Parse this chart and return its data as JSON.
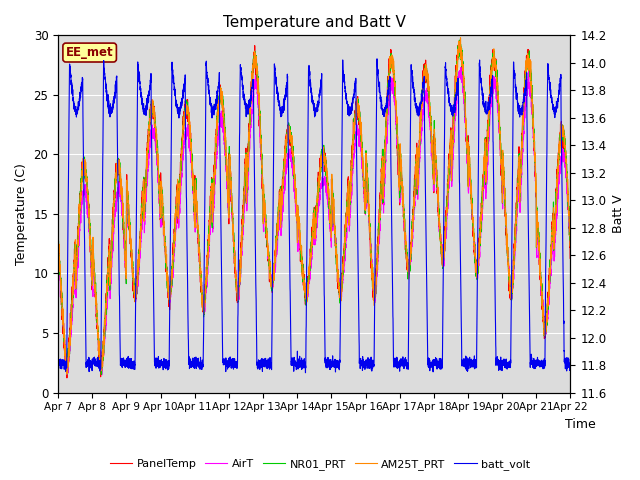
{
  "title": "Temperature and Batt V",
  "xlabel": "Time",
  "ylabel_left": "Temperature (C)",
  "ylabel_right": "Batt V",
  "annotation_text": "EE_met",
  "annotation_color": "#8B0000",
  "annotation_bg": "#FFFF99",
  "annotation_border": "#8B0000",
  "xlim": [
    0,
    15
  ],
  "ylim_left": [
    0,
    30
  ],
  "ylim_right": [
    11.6,
    14.2
  ],
  "xtick_labels": [
    "Apr 7",
    "Apr 8",
    "Apr 9",
    "Apr 10",
    "Apr 11",
    "Apr 12",
    "Apr 13",
    "Apr 14",
    "Apr 15",
    "Apr 16",
    "Apr 17",
    "Apr 18",
    "Apr 19",
    "Apr 20",
    "Apr 21",
    "Apr 22"
  ],
  "yticks_left": [
    0,
    5,
    10,
    15,
    20,
    25,
    30
  ],
  "yticks_right": [
    11.6,
    11.8,
    12.0,
    12.2,
    12.4,
    12.6,
    12.8,
    13.0,
    13.2,
    13.4,
    13.6,
    13.8,
    14.0,
    14.2
  ],
  "bg_color": "#DCDCDC",
  "colors": {
    "PanelTemp": "#FF0000",
    "AirT": "#FF00FF",
    "NR01_PRT": "#00CC00",
    "AM25T_PRT": "#FF8800",
    "batt_volt": "#0000EE"
  },
  "legend_labels": [
    "PanelTemp",
    "AirT",
    "NR01_PRT",
    "AM25T_PRT",
    "batt_volt"
  ],
  "linewidth": 0.8,
  "figsize": [
    6.4,
    4.8
  ],
  "dpi": 100
}
